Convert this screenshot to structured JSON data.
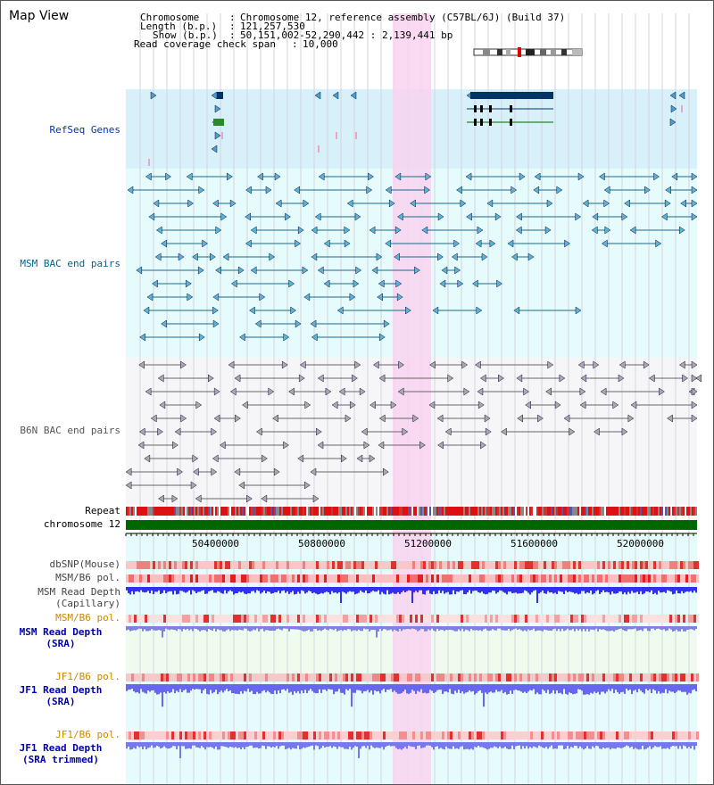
{
  "page_title": "Map View",
  "header": {
    "chromosome_key": "Chromosome",
    "chromosome_value": "Chromosome 12, reference assembly (C57BL/6J) (Build 37)",
    "length_key": "Length (b.p.)",
    "length_value": "121,257,530",
    "show_key": "Show (b.p.)",
    "show_value": "50,151,002-52,290,442 : 2,139,441 bp",
    "span_key": "Read coverage check span",
    "span_value": "10,000"
  },
  "tracks": {
    "refseq": "RefSeq Genes",
    "msm_bac": "MSM BAC end pairs",
    "b6n_bac": "B6N BAC end pairs",
    "repeat": "Repeat",
    "chromosome": "chromosome 12",
    "dbsnp": "dbSNP(Mouse)",
    "msm_b6_pol_1": "MSM/B6 pol.",
    "msm_depth_cap_1": "MSM Read Depth",
    "msm_depth_cap_2": "(Capillary)",
    "msm_b6_pol_2": "MSM/B6 pol.",
    "msm_depth_sra_1": "MSM Read Depth",
    "msm_depth_sra_2": "(SRA)",
    "jf1_b6_pol_1": "JF1/B6 pol.",
    "jf1_depth_sra_1": "JF1 Read Depth",
    "jf1_depth_sra_2": "(SRA)",
    "jf1_b6_pol_2": "JF1/B6 pol.",
    "jf1_depth_trim_1": "JF1 Read Depth",
    "jf1_depth_trim_2": "(SRA trimmed)"
  },
  "axis": {
    "ticks": [
      "50400000",
      "50800000",
      "51200000",
      "51600000",
      "52000000"
    ]
  },
  "colors": {
    "refseq_bg": "#d8f0fa",
    "msm_bg": "#e6fbfb",
    "b6n_bg": "#f4f4f8",
    "highlight": "#f8d4f0",
    "msm_label": "#006688",
    "b6n_label": "#555555",
    "pol_label": "#cc8800",
    "depth_label": "#0000aa",
    "chrom_bar": "#006600"
  }
}
